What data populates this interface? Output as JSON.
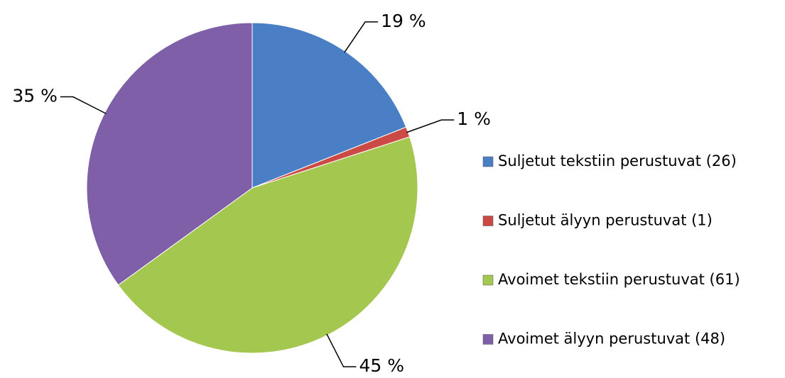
{
  "chart_data": {
    "type": "pie",
    "categories": [
      "Suljetut tekstiin perustuvat (26)",
      "Suljetut älyyn perustuvat (1)",
      "Avoimet tekstiin perustuvat (61)",
      "Avoimet älyyn perustuvat (48)"
    ],
    "values": [
      19,
      1,
      45,
      35
    ],
    "value_labels": [
      "19 %",
      "1 %",
      "45 %",
      "35 %"
    ],
    "colors": [
      "#4a7fc6",
      "#cc4a45",
      "#a3c74f",
      "#7f5fa8"
    ],
    "legend": "right"
  }
}
